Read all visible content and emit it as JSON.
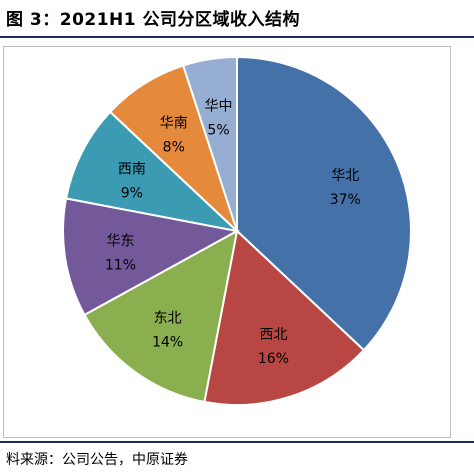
{
  "header": {
    "title": "图 3：2021H1 公司分区域收入结构"
  },
  "footer": {
    "source": "料来源：公司公告，中原证券"
  },
  "chart_data": {
    "type": "pie",
    "title": "",
    "start_angle_deg": 0,
    "direction": "clockwise",
    "slices": [
      {
        "name": "华北",
        "value": 37,
        "label": "37%",
        "color": "#4472a8"
      },
      {
        "name": "西北",
        "value": 16,
        "label": "16%",
        "color": "#b84743"
      },
      {
        "name": "东北",
        "value": 14,
        "label": "14%",
        "color": "#8aaf4e"
      },
      {
        "name": "华东",
        "value": 11,
        "label": "11%",
        "color": "#74599a"
      },
      {
        "name": "西南",
        "value": 9,
        "label": "9%",
        "color": "#3b9bb3"
      },
      {
        "name": "华南",
        "value": 8,
        "label": "8%",
        "color": "#e58a3c"
      },
      {
        "name": "华中",
        "value": 5,
        "label": "5%",
        "color": "#97aed3"
      }
    ]
  }
}
